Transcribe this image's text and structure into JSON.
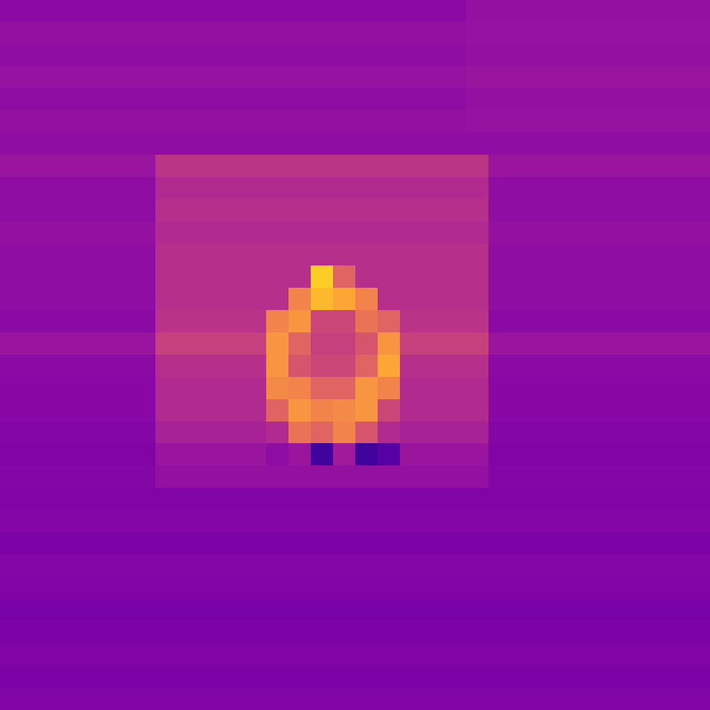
{
  "chart_data": {
    "type": "heatmap",
    "color": "plasma",
    "tick_labels": false,
    "color_range": [
      0,
      1
    ],
    "cells": [
      [
        0.29,
        0.29,
        0.29,
        0.29,
        0.29,
        0.29,
        0.29,
        0.29,
        0.29,
        0.29,
        0.29,
        0.29,
        0.29,
        0.29,
        0.29,
        0.29,
        0.29,
        0.29,
        0.29,
        0.29,
        0.29,
        0.31,
        0.31,
        0.31,
        0.31,
        0.31,
        0.31,
        0.31,
        0.31,
        0.31,
        0.31,
        0.31
      ],
      [
        0.31,
        0.31,
        0.31,
        0.31,
        0.31,
        0.31,
        0.31,
        0.31,
        0.31,
        0.31,
        0.31,
        0.31,
        0.31,
        0.31,
        0.31,
        0.31,
        0.31,
        0.31,
        0.31,
        0.31,
        0.31,
        0.32,
        0.32,
        0.32,
        0.32,
        0.32,
        0.32,
        0.32,
        0.32,
        0.32,
        0.32,
        0.32
      ],
      [
        0.3,
        0.3,
        0.3,
        0.3,
        0.3,
        0.3,
        0.3,
        0.3,
        0.3,
        0.3,
        0.3,
        0.3,
        0.3,
        0.3,
        0.3,
        0.3,
        0.3,
        0.3,
        0.3,
        0.3,
        0.3,
        0.31,
        0.31,
        0.31,
        0.31,
        0.31,
        0.31,
        0.31,
        0.31,
        0.31,
        0.31,
        0.31
      ],
      [
        0.32,
        0.32,
        0.32,
        0.32,
        0.32,
        0.32,
        0.32,
        0.32,
        0.32,
        0.32,
        0.32,
        0.32,
        0.32,
        0.32,
        0.32,
        0.32,
        0.32,
        0.32,
        0.32,
        0.32,
        0.32,
        0.33,
        0.33,
        0.33,
        0.33,
        0.33,
        0.33,
        0.33,
        0.33,
        0.33,
        0.33,
        0.33
      ],
      [
        0.3,
        0.3,
        0.3,
        0.3,
        0.3,
        0.3,
        0.3,
        0.3,
        0.3,
        0.3,
        0.3,
        0.3,
        0.3,
        0.3,
        0.3,
        0.3,
        0.3,
        0.3,
        0.3,
        0.3,
        0.3,
        0.31,
        0.31,
        0.31,
        0.31,
        0.31,
        0.31,
        0.31,
        0.31,
        0.31,
        0.31,
        0.31
      ],
      [
        0.31,
        0.31,
        0.31,
        0.31,
        0.31,
        0.31,
        0.31,
        0.31,
        0.31,
        0.31,
        0.31,
        0.31,
        0.31,
        0.31,
        0.31,
        0.31,
        0.31,
        0.31,
        0.31,
        0.31,
        0.31,
        0.32,
        0.32,
        0.32,
        0.32,
        0.32,
        0.32,
        0.32,
        0.32,
        0.32,
        0.32,
        0.32
      ],
      [
        0.3,
        0.3,
        0.3,
        0.3,
        0.3,
        0.3,
        0.3,
        0.3,
        0.3,
        0.3,
        0.3,
        0.3,
        0.3,
        0.3,
        0.3,
        0.3,
        0.3,
        0.3,
        0.3,
        0.3,
        0.3,
        0.3,
        0.3,
        0.3,
        0.3,
        0.3,
        0.3,
        0.3,
        0.3,
        0.3,
        0.3,
        0.3
      ],
      [
        0.33,
        0.33,
        0.33,
        0.33,
        0.33,
        0.33,
        0.33,
        0.44,
        0.44,
        0.44,
        0.44,
        0.44,
        0.44,
        0.44,
        0.44,
        0.44,
        0.44,
        0.44,
        0.44,
        0.44,
        0.44,
        0.44,
        0.33,
        0.33,
        0.33,
        0.33,
        0.33,
        0.33,
        0.33,
        0.33,
        0.33,
        0.33
      ],
      [
        0.3,
        0.3,
        0.3,
        0.3,
        0.3,
        0.3,
        0.3,
        0.4,
        0.4,
        0.4,
        0.4,
        0.4,
        0.4,
        0.4,
        0.4,
        0.4,
        0.4,
        0.4,
        0.4,
        0.4,
        0.4,
        0.4,
        0.3,
        0.3,
        0.3,
        0.3,
        0.3,
        0.3,
        0.3,
        0.3,
        0.3,
        0.3
      ],
      [
        0.3,
        0.3,
        0.3,
        0.3,
        0.3,
        0.3,
        0.3,
        0.42,
        0.42,
        0.42,
        0.42,
        0.42,
        0.42,
        0.42,
        0.42,
        0.42,
        0.42,
        0.42,
        0.42,
        0.42,
        0.42,
        0.42,
        0.3,
        0.3,
        0.3,
        0.3,
        0.3,
        0.3,
        0.3,
        0.3,
        0.3,
        0.3
      ],
      [
        0.31,
        0.31,
        0.31,
        0.31,
        0.31,
        0.31,
        0.31,
        0.4,
        0.4,
        0.4,
        0.4,
        0.4,
        0.4,
        0.4,
        0.4,
        0.4,
        0.4,
        0.4,
        0.4,
        0.4,
        0.4,
        0.4,
        0.31,
        0.31,
        0.31,
        0.31,
        0.31,
        0.31,
        0.31,
        0.31,
        0.31,
        0.31
      ],
      [
        0.3,
        0.3,
        0.3,
        0.3,
        0.3,
        0.3,
        0.3,
        0.42,
        0.42,
        0.42,
        0.42,
        0.42,
        0.42,
        0.42,
        0.42,
        0.42,
        0.42,
        0.42,
        0.42,
        0.42,
        0.42,
        0.42,
        0.3,
        0.3,
        0.3,
        0.3,
        0.3,
        0.3,
        0.3,
        0.3,
        0.3,
        0.3
      ],
      [
        0.3,
        0.3,
        0.3,
        0.3,
        0.3,
        0.3,
        0.3,
        0.42,
        0.42,
        0.42,
        0.42,
        0.42,
        0.42,
        0.42,
        0.9,
        0.6,
        0.42,
        0.42,
        0.42,
        0.42,
        0.42,
        0.42,
        0.3,
        0.3,
        0.3,
        0.3,
        0.3,
        0.3,
        0.3,
        0.3,
        0.3,
        0.3
      ],
      [
        0.3,
        0.3,
        0.3,
        0.3,
        0.3,
        0.3,
        0.3,
        0.42,
        0.42,
        0.42,
        0.42,
        0.42,
        0.42,
        0.7,
        0.85,
        0.8,
        0.7,
        0.42,
        0.42,
        0.42,
        0.42,
        0.42,
        0.3,
        0.3,
        0.3,
        0.3,
        0.3,
        0.3,
        0.3,
        0.3,
        0.3,
        0.3
      ],
      [
        0.29,
        0.29,
        0.29,
        0.29,
        0.29,
        0.29,
        0.29,
        0.43,
        0.43,
        0.43,
        0.43,
        0.43,
        0.7,
        0.75,
        0.5,
        0.5,
        0.65,
        0.6,
        0.43,
        0.43,
        0.43,
        0.43,
        0.29,
        0.29,
        0.29,
        0.29,
        0.29,
        0.29,
        0.29,
        0.29,
        0.29,
        0.29
      ],
      [
        0.33,
        0.33,
        0.33,
        0.33,
        0.33,
        0.33,
        0.33,
        0.48,
        0.48,
        0.48,
        0.48,
        0.48,
        0.75,
        0.6,
        0.48,
        0.48,
        0.55,
        0.75,
        0.48,
        0.48,
        0.48,
        0.48,
        0.33,
        0.33,
        0.33,
        0.33,
        0.33,
        0.33,
        0.33,
        0.33,
        0.33,
        0.33
      ],
      [
        0.29,
        0.29,
        0.29,
        0.29,
        0.29,
        0.29,
        0.29,
        0.42,
        0.42,
        0.42,
        0.42,
        0.42,
        0.75,
        0.55,
        0.5,
        0.5,
        0.6,
        0.8,
        0.42,
        0.42,
        0.42,
        0.42,
        0.29,
        0.29,
        0.29,
        0.29,
        0.29,
        0.29,
        0.29,
        0.29,
        0.29,
        0.29
      ],
      [
        0.28,
        0.28,
        0.28,
        0.28,
        0.28,
        0.28,
        0.28,
        0.4,
        0.4,
        0.4,
        0.4,
        0.4,
        0.72,
        0.7,
        0.6,
        0.6,
        0.75,
        0.7,
        0.4,
        0.4,
        0.4,
        0.4,
        0.28,
        0.28,
        0.28,
        0.28,
        0.28,
        0.28,
        0.28,
        0.28,
        0.28,
        0.28
      ],
      [
        0.28,
        0.28,
        0.28,
        0.28,
        0.28,
        0.28,
        0.28,
        0.4,
        0.4,
        0.4,
        0.4,
        0.4,
        0.6,
        0.75,
        0.7,
        0.72,
        0.75,
        0.5,
        0.4,
        0.4,
        0.4,
        0.4,
        0.28,
        0.28,
        0.28,
        0.28,
        0.28,
        0.28,
        0.28,
        0.28,
        0.28,
        0.28
      ],
      [
        0.27,
        0.27,
        0.27,
        0.27,
        0.27,
        0.27,
        0.27,
        0.37,
        0.37,
        0.37,
        0.37,
        0.37,
        0.4,
        0.65,
        0.6,
        0.7,
        0.55,
        0.4,
        0.37,
        0.37,
        0.37,
        0.37,
        0.27,
        0.27,
        0.27,
        0.27,
        0.27,
        0.27,
        0.27,
        0.27,
        0.27,
        0.27
      ],
      [
        0.26,
        0.26,
        0.26,
        0.26,
        0.26,
        0.26,
        0.26,
        0.33,
        0.33,
        0.33,
        0.33,
        0.33,
        0.3,
        0.33,
        0.1,
        0.35,
        0.1,
        0.15,
        0.33,
        0.33,
        0.33,
        0.33,
        0.26,
        0.26,
        0.26,
        0.26,
        0.26,
        0.26,
        0.26,
        0.26,
        0.26,
        0.26
      ],
      [
        0.27,
        0.27,
        0.27,
        0.27,
        0.27,
        0.27,
        0.27,
        0.31,
        0.31,
        0.31,
        0.31,
        0.31,
        0.31,
        0.31,
        0.31,
        0.31,
        0.31,
        0.31,
        0.31,
        0.31,
        0.31,
        0.31,
        0.27,
        0.27,
        0.27,
        0.27,
        0.27,
        0.27,
        0.27,
        0.27,
        0.27,
        0.27
      ],
      [
        0.26,
        0.26,
        0.26,
        0.26,
        0.26,
        0.26,
        0.26,
        0.26,
        0.26,
        0.26,
        0.26,
        0.26,
        0.26,
        0.26,
        0.26,
        0.26,
        0.26,
        0.26,
        0.26,
        0.26,
        0.26,
        0.26,
        0.26,
        0.26,
        0.26,
        0.26,
        0.26,
        0.26,
        0.26,
        0.26,
        0.26,
        0.26
      ],
      [
        0.27,
        0.27,
        0.27,
        0.27,
        0.27,
        0.27,
        0.27,
        0.27,
        0.27,
        0.27,
        0.27,
        0.27,
        0.27,
        0.27,
        0.27,
        0.27,
        0.27,
        0.27,
        0.27,
        0.27,
        0.27,
        0.27,
        0.27,
        0.27,
        0.27,
        0.27,
        0.27,
        0.27,
        0.27,
        0.27,
        0.27,
        0.27
      ],
      [
        0.25,
        0.25,
        0.25,
        0.25,
        0.25,
        0.25,
        0.25,
        0.25,
        0.25,
        0.25,
        0.25,
        0.25,
        0.25,
        0.25,
        0.25,
        0.25,
        0.25,
        0.25,
        0.25,
        0.25,
        0.25,
        0.25,
        0.25,
        0.25,
        0.25,
        0.25,
        0.25,
        0.25,
        0.25,
        0.25,
        0.25,
        0.25
      ],
      [
        0.27,
        0.27,
        0.27,
        0.27,
        0.27,
        0.27,
        0.27,
        0.27,
        0.27,
        0.27,
        0.27,
        0.27,
        0.27,
        0.27,
        0.27,
        0.27,
        0.27,
        0.27,
        0.27,
        0.27,
        0.27,
        0.27,
        0.27,
        0.27,
        0.27,
        0.27,
        0.27,
        0.27,
        0.27,
        0.27,
        0.27,
        0.27
      ],
      [
        0.26,
        0.26,
        0.26,
        0.26,
        0.26,
        0.26,
        0.26,
        0.26,
        0.26,
        0.26,
        0.26,
        0.26,
        0.26,
        0.26,
        0.26,
        0.26,
        0.26,
        0.26,
        0.26,
        0.26,
        0.26,
        0.26,
        0.26,
        0.26,
        0.26,
        0.26,
        0.26,
        0.26,
        0.26,
        0.26,
        0.26,
        0.26
      ],
      [
        0.24,
        0.24,
        0.24,
        0.24,
        0.24,
        0.24,
        0.24,
        0.24,
        0.24,
        0.24,
        0.24,
        0.24,
        0.24,
        0.24,
        0.24,
        0.24,
        0.24,
        0.24,
        0.24,
        0.24,
        0.24,
        0.24,
        0.24,
        0.24,
        0.24,
        0.24,
        0.24,
        0.24,
        0.24,
        0.24,
        0.24,
        0.24
      ],
      [
        0.25,
        0.25,
        0.25,
        0.25,
        0.25,
        0.25,
        0.25,
        0.25,
        0.25,
        0.25,
        0.25,
        0.25,
        0.25,
        0.25,
        0.25,
        0.25,
        0.25,
        0.25,
        0.25,
        0.25,
        0.25,
        0.25,
        0.25,
        0.25,
        0.25,
        0.25,
        0.25,
        0.25,
        0.25,
        0.25,
        0.25,
        0.25
      ],
      [
        0.26,
        0.26,
        0.26,
        0.26,
        0.26,
        0.26,
        0.26,
        0.26,
        0.26,
        0.26,
        0.26,
        0.26,
        0.26,
        0.26,
        0.26,
        0.26,
        0.26,
        0.26,
        0.26,
        0.26,
        0.26,
        0.26,
        0.26,
        0.26,
        0.26,
        0.26,
        0.26,
        0.26,
        0.26,
        0.26,
        0.26,
        0.26
      ],
      [
        0.25,
        0.25,
        0.25,
        0.25,
        0.25,
        0.25,
        0.25,
        0.25,
        0.25,
        0.25,
        0.25,
        0.25,
        0.25,
        0.25,
        0.25,
        0.25,
        0.25,
        0.25,
        0.25,
        0.25,
        0.25,
        0.25,
        0.25,
        0.25,
        0.25,
        0.25,
        0.25,
        0.25,
        0.25,
        0.25,
        0.25,
        0.25
      ],
      [
        0.26,
        0.26,
        0.26,
        0.26,
        0.26,
        0.26,
        0.26,
        0.26,
        0.26,
        0.26,
        0.26,
        0.26,
        0.26,
        0.26,
        0.26,
        0.26,
        0.26,
        0.26,
        0.26,
        0.26,
        0.26,
        0.26,
        0.26,
        0.26,
        0.26,
        0.26,
        0.26,
        0.26,
        0.26,
        0.26,
        0.26,
        0.26
      ]
    ]
  }
}
